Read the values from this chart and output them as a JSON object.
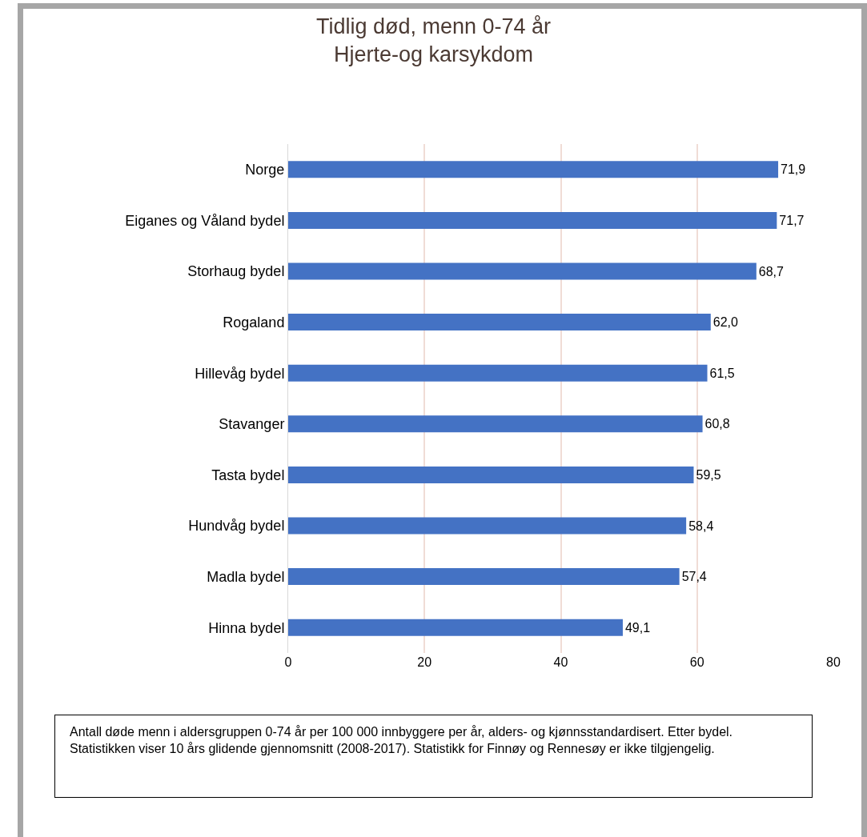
{
  "chart_data": {
    "type": "bar",
    "orientation": "horizontal",
    "title": "Tidlig død, menn 0-74 år\nHjerte-og karsykdom",
    "categories": [
      "Norge",
      "Eiganes og Våland bydel",
      "Storhaug bydel",
      "Rogaland",
      "Hillevåg bydel",
      "Stavanger",
      "Tasta bydel",
      "Hundvåg bydel",
      "Madla bydel",
      "Hinna bydel"
    ],
    "values": [
      71.9,
      71.7,
      68.7,
      62.0,
      61.5,
      60.8,
      59.5,
      58.4,
      57.4,
      49.1
    ],
    "value_labels": [
      "71,9",
      "71,7",
      "68,7",
      "62,0",
      "61,5",
      "60,8",
      "59,5",
      "58,4",
      "57,4",
      "49,1"
    ],
    "color": "#4472c4",
    "xlim": [
      0,
      80
    ],
    "xticks": [
      0,
      20,
      40,
      60,
      80
    ],
    "grid": "x",
    "legend": false,
    "annotations": [
      "Antall døde menn i aldersgruppen 0-74 år per 100 000 innbyggere per år, alders- og kjønnsstandardisert. Etter bydel. Statistikken viser 10 års glidende gjennomsnitt (2008-2017). Statistikk for Finnøy og Rennesøy er ikke tilgjengelig."
    ]
  }
}
